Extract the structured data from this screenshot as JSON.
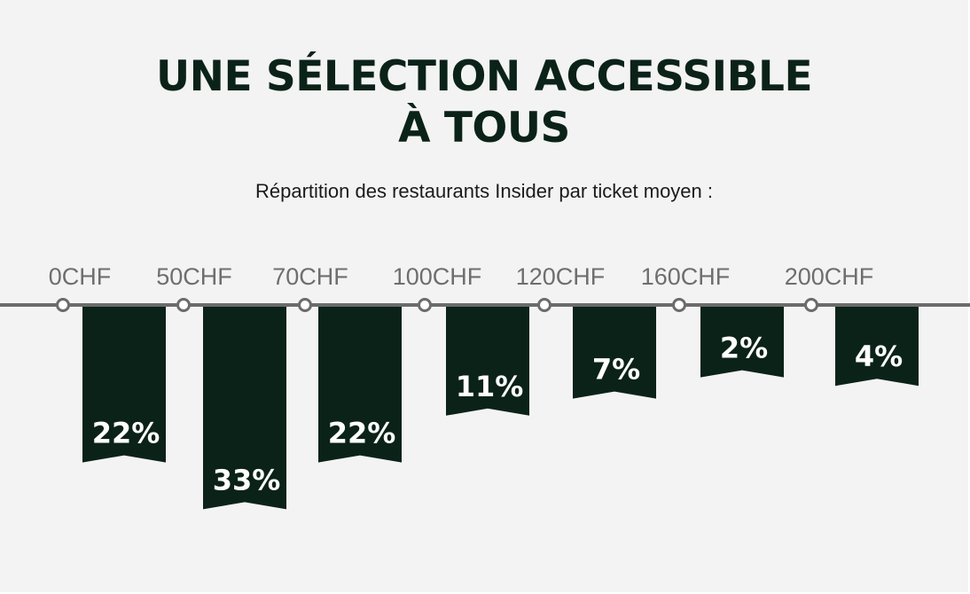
{
  "title_line1": "UNE SÉLECTION ACCESSIBLE",
  "title_line2": "À TOUS",
  "subtitle": "Répartition des restaurants Insider par ticket moyen :",
  "colors": {
    "banner": "#0b2219",
    "axis": "#6b6b6b",
    "background": "#f3f3f3",
    "tick_label": "#6e6e6e"
  },
  "chart_data": {
    "type": "bar",
    "price_ticks": [
      "0CHF",
      "50CHF",
      "70CHF",
      "100CHF",
      "120CHF",
      "160CHF",
      "200CHF"
    ],
    "categories": [
      "0–50CHF",
      "50–70CHF",
      "70–100CHF",
      "100–120CHF",
      "120–160CHF",
      "160–200CHF",
      "200CHF+"
    ],
    "values": [
      22,
      33,
      22,
      11,
      7,
      2,
      4
    ],
    "value_labels": [
      "22%",
      "33%",
      "22%",
      "11%",
      "7%",
      "2%",
      "4%"
    ],
    "unit": "%"
  }
}
